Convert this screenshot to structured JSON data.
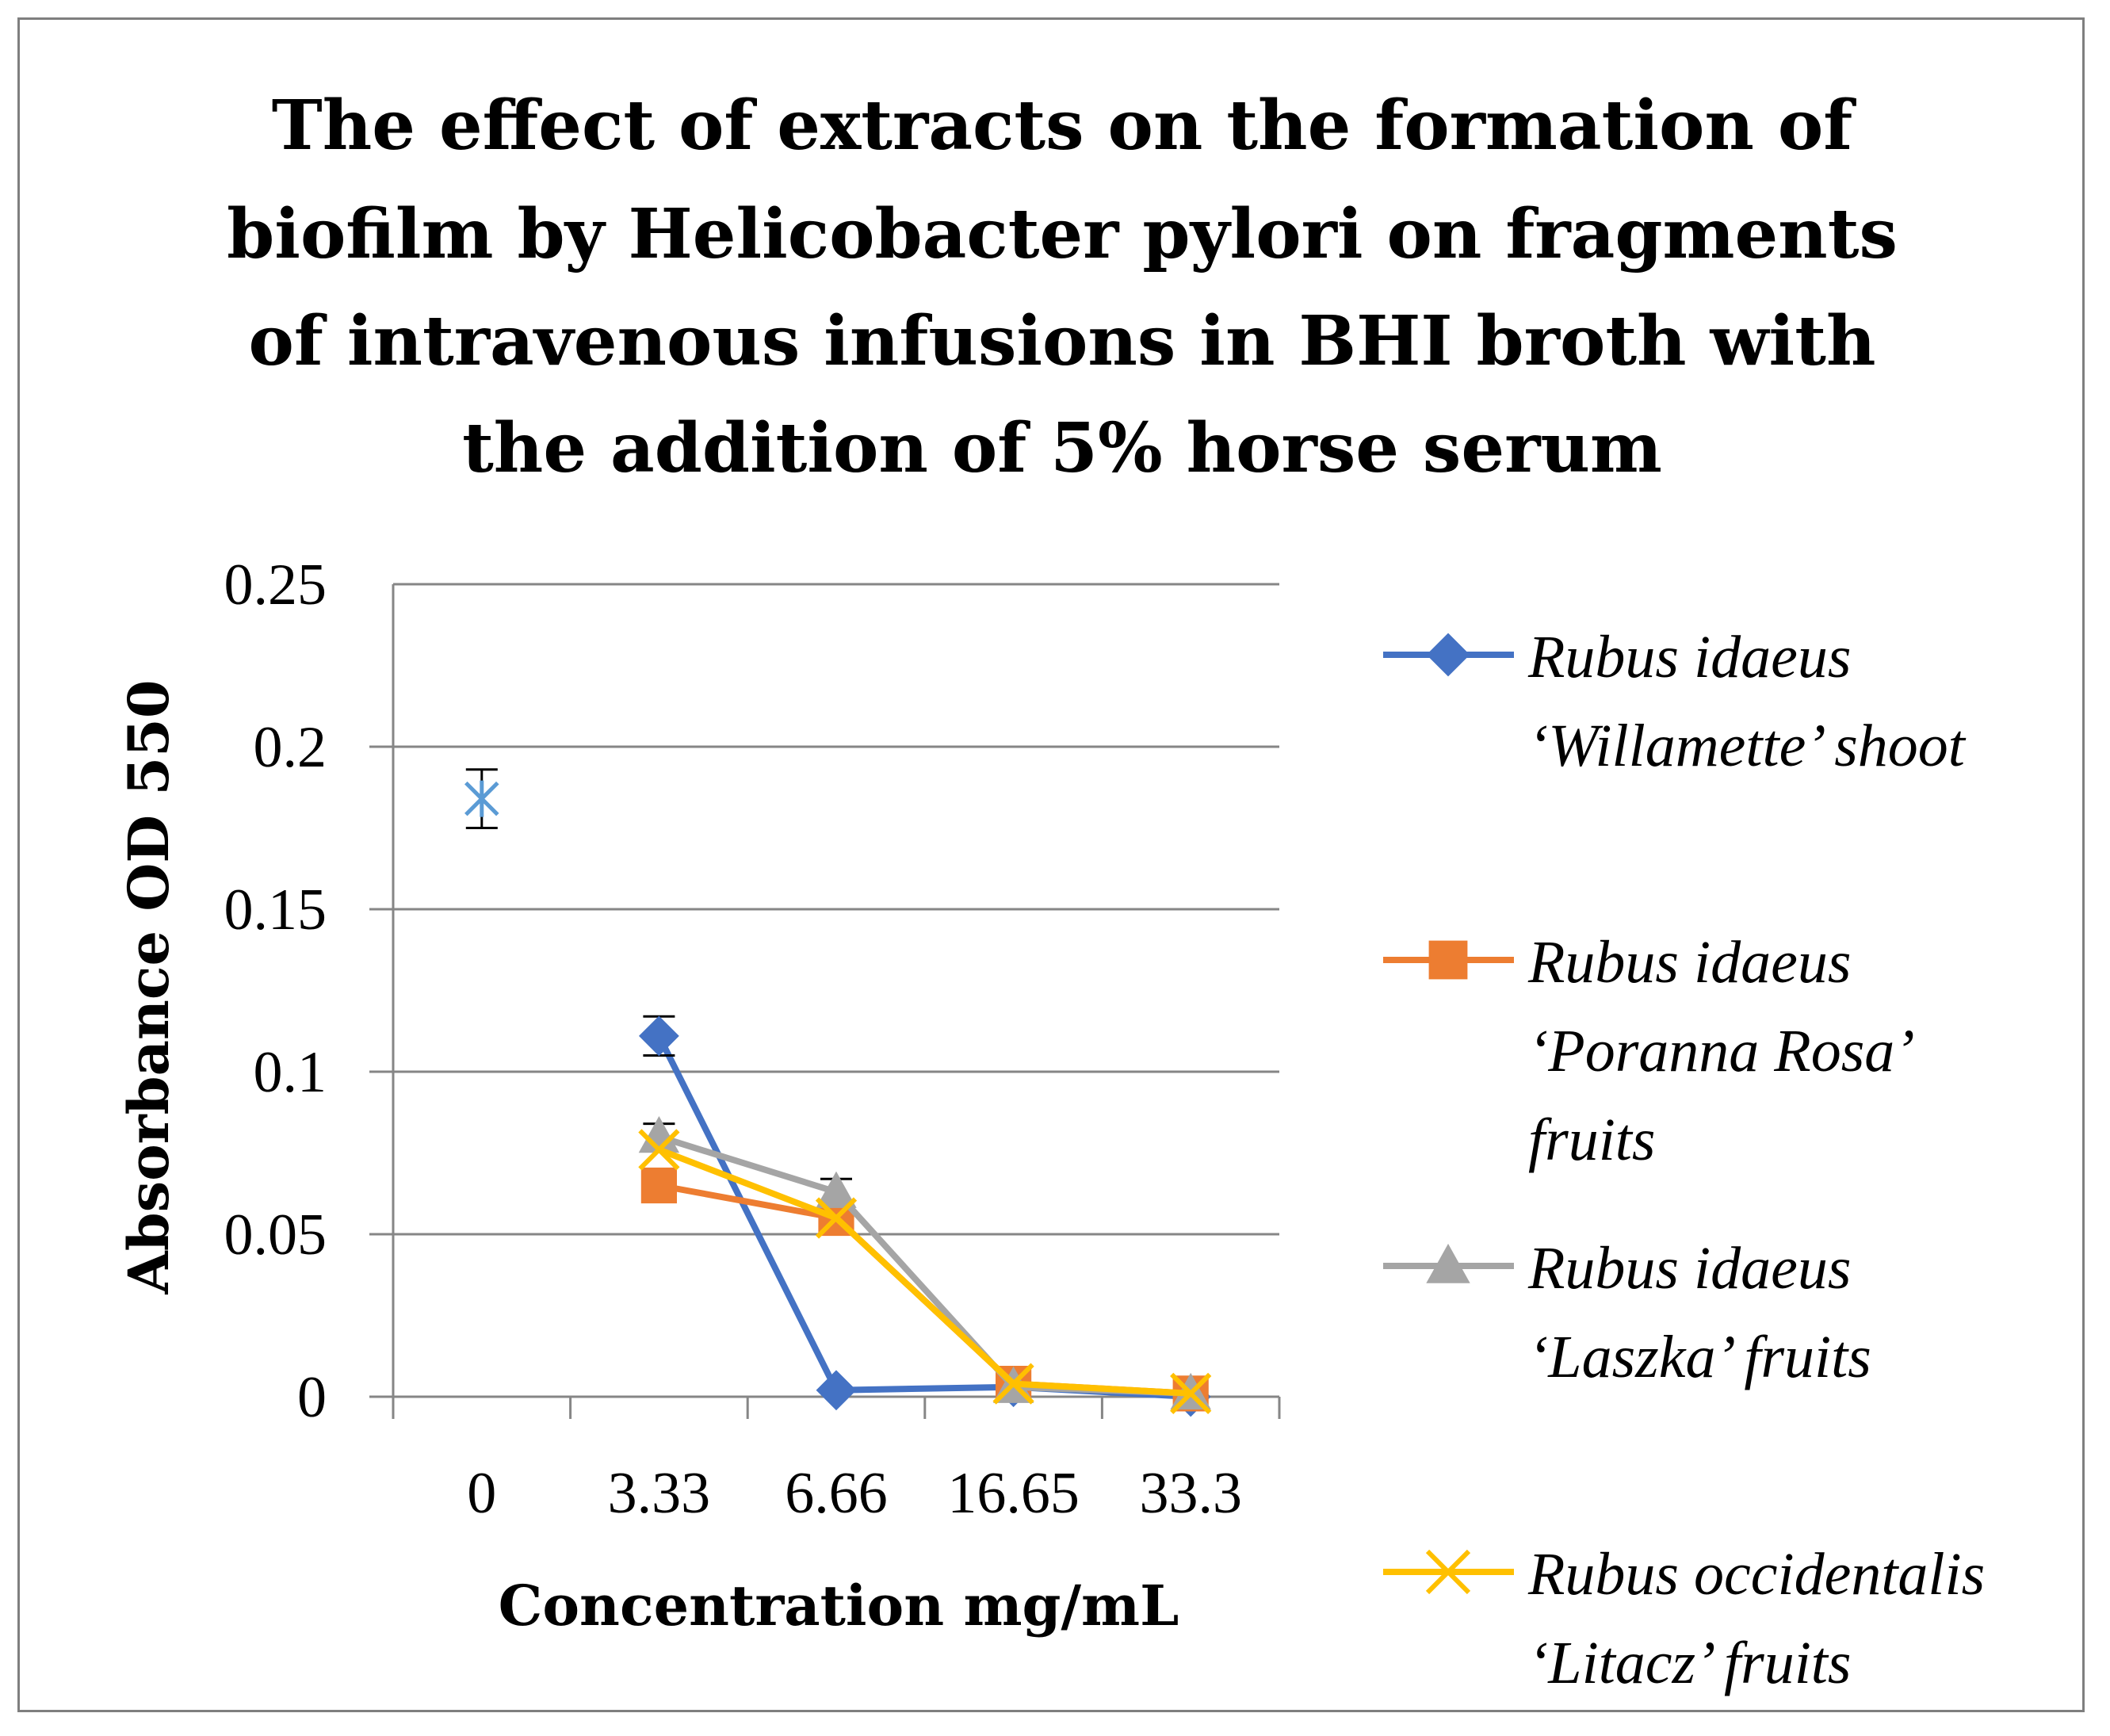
{
  "chart_data": {
    "type": "line",
    "title": [
      "The effect of extracts on the formation of",
      "biofilm by Helicobacter pylori on fragments",
      "of intravenous infusions in BHI broth with",
      "the addition of 5% horse serum"
    ],
    "xlabel": "Concentration mg/mL",
    "ylabel": "Absorbance OD 550",
    "categories": [
      "0",
      "3.33",
      "6.66",
      "16.65",
      "33.3"
    ],
    "yticks": [
      "0",
      "0.05",
      "0.1",
      "0.15",
      "0.2",
      "0.25"
    ],
    "ylim": [
      0,
      0.25
    ],
    "grid": true,
    "legend_position": "right",
    "control": {
      "category": "0",
      "value": 0.184,
      "error": 0.009,
      "marker": "star",
      "color": "#5b9bd5"
    },
    "series": [
      {
        "name": "Rubus idaeus 'Willamette' shoot",
        "legend_lines": [
          "Rubus idaeus",
          "‘Willamette’ shoot"
        ],
        "color": "#4472c4",
        "marker": "diamond",
        "values": [
          null,
          0.111,
          0.002,
          0.003,
          0.0
        ],
        "errors": [
          null,
          0.006,
          0.0,
          0.0,
          0.0
        ]
      },
      {
        "name": "Rubus idaeus 'Poranna Rosa' fruits",
        "legend_lines": [
          "Rubus idaeus",
          "‘Poranna Rosa’",
          "fruits"
        ],
        "color": "#ed7d31",
        "marker": "square",
        "values": [
          null,
          0.065,
          0.055,
          0.004,
          0.001
        ],
        "errors": [
          null,
          0.0,
          0.0,
          0.0,
          0.0
        ]
      },
      {
        "name": "Rubus idaeus 'Laszka' fruits",
        "legend_lines": [
          "Rubus idaeus",
          "‘Laszka’ fruits"
        ],
        "color": "#a5a5a5",
        "marker": "triangle",
        "values": [
          null,
          0.08,
          0.063,
          0.003,
          0.001
        ],
        "errors": [
          null,
          0.004,
          0.004,
          0.0,
          0.0
        ]
      },
      {
        "name": "Rubus occidentalis 'Litacz' fruits",
        "legend_lines": [
          "Rubus occidentalis",
          "‘Litacz’ fruits"
        ],
        "color": "#ffc000",
        "marker": "x",
        "values": [
          null,
          0.076,
          0.055,
          0.004,
          0.001
        ],
        "errors": [
          null,
          0.0,
          0.0,
          0.0,
          0.0
        ]
      }
    ]
  }
}
